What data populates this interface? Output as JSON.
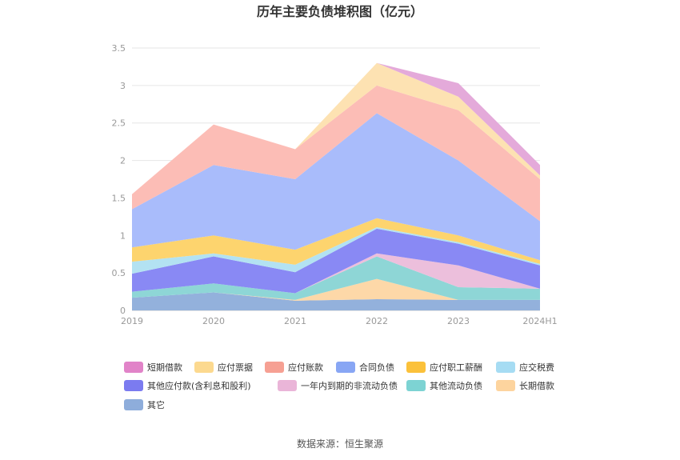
{
  "chart_data": {
    "type": "area",
    "stacked": true,
    "title": "历年主要负债堆积图（亿元）",
    "xlabel": "",
    "ylabel": "",
    "ylim": [
      0,
      3.5
    ],
    "yticks": [
      "0",
      "0.5",
      "1",
      "1.5",
      "2",
      "2.5",
      "3",
      "3.5"
    ],
    "categories": [
      "2019",
      "2020",
      "2021",
      "2022",
      "2023",
      "2024H1"
    ],
    "grid": true,
    "legend_position": "bottom",
    "series": [
      {
        "name": "其它",
        "color": "#93b1dc",
        "values": [
          0.17,
          0.24,
          0.13,
          0.15,
          0.14,
          0.14
        ]
      },
      {
        "name": "长期借款",
        "color": "#fdd8a8",
        "values": [
          0,
          0,
          0.01,
          0.27,
          0,
          0
        ]
      },
      {
        "name": "其他流动负债",
        "color": "#8ed6d6",
        "values": [
          0.08,
          0.12,
          0.09,
          0.3,
          0.17,
          0.15
        ]
      },
      {
        "name": "一年内到期的非流动负债",
        "color": "#ecbfdc",
        "values": [
          0,
          0,
          0,
          0.04,
          0.29,
          0
        ]
      },
      {
        "name": "其他应付款(含利息和股利)",
        "color": "#8989f4",
        "values": [
          0.24,
          0.36,
          0.28,
          0.33,
          0.29,
          0.31
        ]
      },
      {
        "name": "应交税费",
        "color": "#b3e2f2",
        "values": [
          0.16,
          0.04,
          0.1,
          0.02,
          0.02,
          0.02
        ]
      },
      {
        "name": "应付职工薪酬",
        "color": "#fdd46e",
        "values": [
          0.19,
          0.24,
          0.2,
          0.12,
          0.09,
          0.05
        ]
      },
      {
        "name": "合同负债",
        "color": "#a9bcfb",
        "values": [
          0.51,
          0.94,
          0.94,
          1.4,
          1.0,
          0.52
        ]
      },
      {
        "name": "应付账款",
        "color": "#fcbdb6",
        "values": [
          0.2,
          0.54,
          0.4,
          0.37,
          0.67,
          0.56
        ]
      },
      {
        "name": "应付票据",
        "color": "#fde2b2",
        "values": [
          0,
          0,
          0,
          0.3,
          0.18,
          0.05
        ]
      },
      {
        "name": "短期借款",
        "color": "#e4aada",
        "values": [
          0,
          0,
          0,
          0,
          0.18,
          0.14
        ]
      }
    ],
    "legend": [
      {
        "name": "短期借款",
        "color": "#e183c8"
      },
      {
        "name": "应付票据",
        "color": "#fcd98f"
      },
      {
        "name": "应付账款",
        "color": "#f6a093"
      },
      {
        "name": "合同负债",
        "color": "#88a6f4"
      },
      {
        "name": "应付职工薪酬",
        "color": "#fbc13a"
      },
      {
        "name": "应交税费",
        "color": "#a6dcf3"
      },
      {
        "name": "其他应付款(含利息和股利)",
        "color": "#7b7bf0"
      },
      {
        "name": "一年内到期的非流动负债",
        "color": "#eab5d8"
      },
      {
        "name": "其他流动负债",
        "color": "#7dd3d3"
      },
      {
        "name": "长期借款",
        "color": "#fdd49e"
      },
      {
        "name": "其它",
        "color": "#8eaddb"
      }
    ],
    "source": "数据来源：恒生聚源"
  }
}
